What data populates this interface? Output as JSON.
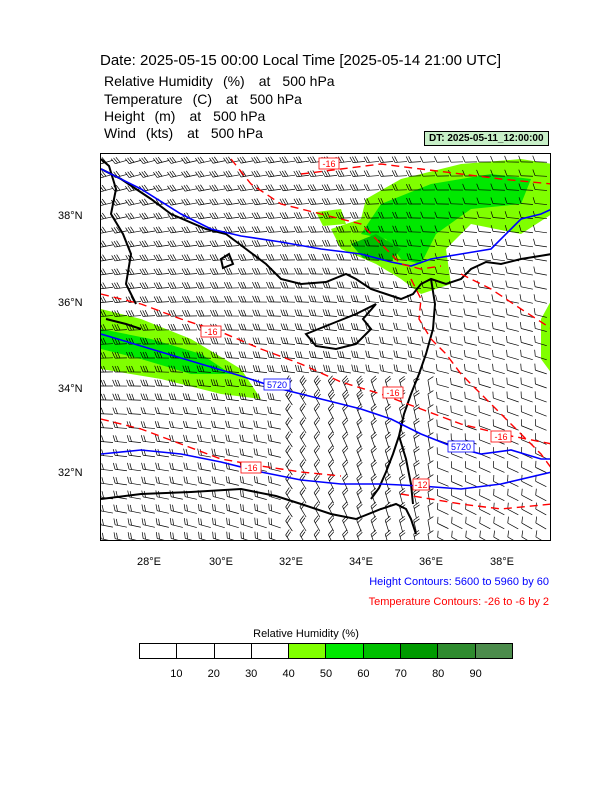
{
  "title": "Date: 2025-05-15  00:00 Local Time [2025-05-14  21:00 UTC]",
  "variables": [
    {
      "name": "Relative Humidity",
      "unit": "(%)",
      "at": "at",
      "level": "500 hPa"
    },
    {
      "name": "Temperature",
      "unit": "(C)",
      "at": "at",
      "level": "500 hPa"
    },
    {
      "name": "Height",
      "unit": "(m)",
      "at": "at",
      "level": "500 hPa"
    },
    {
      "name": "Wind",
      "unit": "(kts)",
      "at": "at",
      "level": "500 hPa"
    }
  ],
  "dt_badge": "DT: 2025-05-11_12:00:00",
  "map": {
    "lon_range": [
      26.6,
      39.4
    ],
    "lat_range": [
      30.6,
      39.6
    ],
    "lon_ticks": [
      "28°E",
      "30°E",
      "32°E",
      "34°E",
      "36°E",
      "38°E"
    ],
    "lat_ticks": [
      "38°N",
      "36°N",
      "34°N",
      "32°N"
    ],
    "height_contour_labels": [
      "5720",
      "5720"
    ],
    "temp_contour_labels": [
      "-16",
      "-16",
      "-16",
      "-16",
      "-16",
      "-12"
    ],
    "colors": {
      "height": "#0000ff",
      "temperature": "#ff0000",
      "coast": "#000000",
      "rh_40": "#80ff00",
      "rh_50": "#00e800",
      "rh_60": "#00c000"
    }
  },
  "height_contours_text": "Height Contours: 5600 to 5960 by 60",
  "temp_contours_text": "Temperature Contours: -26 to -6 by 2",
  "colorbar": {
    "title": "Relative Humidity  (%)",
    "colors": [
      "#ffffff",
      "#ffffff",
      "#ffffff",
      "#ffffff",
      "#80ff00",
      "#00e800",
      "#00c000",
      "#009a00",
      "#2e8b2e",
      "#4c8c4c"
    ],
    "labels": [
      "10",
      "20",
      "30",
      "40",
      "50",
      "60",
      "70",
      "80",
      "90"
    ]
  }
}
